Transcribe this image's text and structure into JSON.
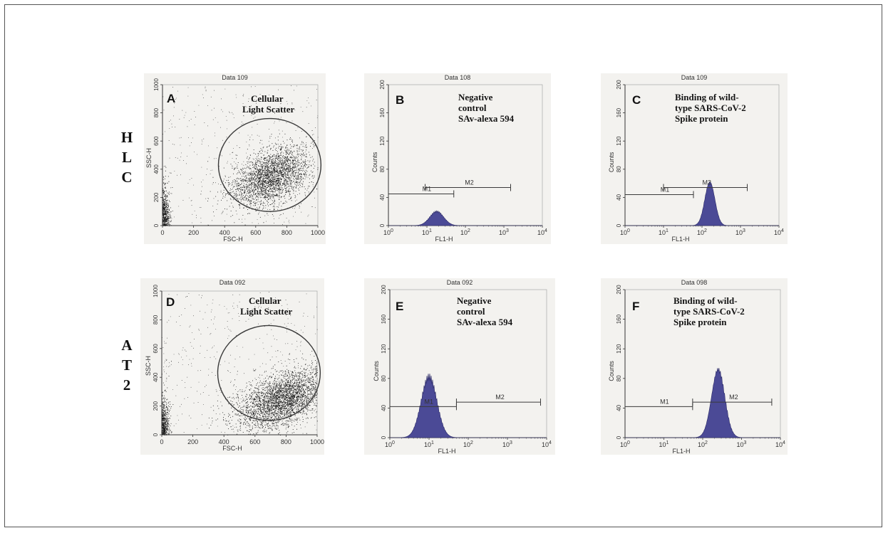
{
  "row_labels": [
    {
      "letters": [
        "H",
        "L",
        "C"
      ]
    },
    {
      "letters": [
        "A",
        "T",
        "2"
      ]
    }
  ],
  "colors": {
    "dot": "#1a1a1a",
    "histogram_fill": "#4b4a96",
    "line": "#333333",
    "panel_bg": "#f3f2ef"
  },
  "chart_data": [
    {
      "id": "scatter-hlc",
      "type": "scatter",
      "letter": "A",
      "data_title": "Data 109",
      "caption": [
        "Cellular",
        "Light Scatter"
      ],
      "xlabel": "FSC-H",
      "ylabel": "SSC-H",
      "xlim": [
        0,
        1000
      ],
      "ylim": [
        0,
        1000
      ],
      "xticks": [
        "0",
        "200",
        "400",
        "600",
        "800",
        "1000"
      ],
      "yticks": [
        "0",
        "200",
        "400",
        "600",
        "800",
        "1000"
      ],
      "cluster": {
        "center": [
          700,
          350
        ],
        "spread": [
          130,
          95
        ],
        "points": 2600
      },
      "gate": {
        "center": [
          690,
          430
        ],
        "radius_x": 330,
        "radius_y": 330
      }
    },
    {
      "id": "hist-hlc-neg",
      "type": "area",
      "letter": "B",
      "data_title": "Data 108",
      "caption": [
        "Negative",
        "control",
        "SAv-alexa 594"
      ],
      "xlabel": "FL1-H",
      "ylabel": "Counts",
      "xscale": "log",
      "xlim": [
        1,
        10000
      ],
      "ylim": [
        0,
        200
      ],
      "xticks": [
        "10^0",
        "10^1",
        "10^2",
        "10^3",
        "10^4"
      ],
      "yticks": [
        "0",
        "40",
        "80",
        "120",
        "160",
        "200"
      ],
      "peak": {
        "x": 18,
        "counts": 20,
        "log_width": 0.18
      },
      "markers": [
        {
          "name": "M1",
          "range": [
            1,
            50
          ],
          "y": 45
        },
        {
          "name": "M2",
          "range": [
            9,
            1500
          ],
          "y": 54
        }
      ]
    },
    {
      "id": "hist-hlc-spike",
      "type": "area",
      "letter": "C",
      "data_title": "Data 109",
      "caption": [
        "Binding  of wild-",
        "type SARS-CoV-2",
        "Spike protein"
      ],
      "xlabel": "FL1-H",
      "ylabel": "Counts",
      "xscale": "log",
      "xlim": [
        1,
        10000
      ],
      "ylim": [
        0,
        200
      ],
      "xticks": [
        "10^0",
        "10^1",
        "10^2",
        "10^3",
        "10^4"
      ],
      "yticks": [
        "0",
        "40",
        "80",
        "120",
        "160",
        "200"
      ],
      "peak": {
        "x": 160,
        "counts": 62,
        "log_width": 0.13
      },
      "markers": [
        {
          "name": "M1",
          "range": [
            1,
            60
          ],
          "y": 44
        },
        {
          "name": "M2",
          "range": [
            10,
            1500
          ],
          "y": 54
        }
      ]
    },
    {
      "id": "scatter-at2",
      "type": "scatter",
      "letter": "D",
      "data_title": "Data 092",
      "caption": [
        "Cellular",
        "Light Scatter"
      ],
      "xlabel": "FSC-H",
      "ylabel": "SSC-H",
      "xlim": [
        0,
        1000
      ],
      "ylim": [
        0,
        1000
      ],
      "xticks": [
        "0",
        "200",
        "400",
        "600",
        "800",
        "1000"
      ],
      "yticks": [
        "0",
        "200",
        "400",
        "600",
        "800",
        "1000"
      ],
      "cluster": {
        "center": [
          780,
          250
        ],
        "spread": [
          150,
          95
        ],
        "points": 3200
      },
      "gate": {
        "center": [
          690,
          430
        ],
        "radius_x": 330,
        "radius_y": 330
      }
    },
    {
      "id": "hist-at2-neg",
      "type": "area",
      "letter": "E",
      "data_title": "Data 092",
      "caption": [
        "Negative",
        "control",
        "SAv-alexa 594"
      ],
      "xlabel": "FL1-H",
      "ylabel": "Counts",
      "xscale": "log",
      "xlim": [
        1,
        10000
      ],
      "ylim": [
        0,
        200
      ],
      "xticks": [
        "10^0",
        "10^1",
        "10^2",
        "10^3",
        "10^4"
      ],
      "yticks": [
        "0",
        "40",
        "80",
        "120",
        "160",
        "200"
      ],
      "peak": {
        "x": 10,
        "counts": 82,
        "log_width": 0.2
      },
      "markers": [
        {
          "name": "M1",
          "range": [
            1,
            50
          ],
          "y": 42
        },
        {
          "name": "M2",
          "range": [
            50,
            7000
          ],
          "y": 48
        }
      ]
    },
    {
      "id": "hist-at2-spike",
      "type": "area",
      "letter": "F",
      "data_title": "Data 098",
      "caption": [
        "Binding  of wild-",
        "type SARS-CoV-2",
        "Spike protein"
      ],
      "xlabel": "FL1-H",
      "ylabel": "Counts",
      "xscale": "log",
      "xlim": [
        1,
        10000
      ],
      "ylim": [
        0,
        200
      ],
      "xticks": [
        "10^0",
        "10^1",
        "10^2",
        "10^3",
        "10^4"
      ],
      "yticks": [
        "0",
        "40",
        "80",
        "120",
        "160",
        "200"
      ],
      "peak": {
        "x": 250,
        "counts": 92,
        "log_width": 0.17
      },
      "markers": [
        {
          "name": "M1",
          "range": [
            1,
            55
          ],
          "y": 42
        },
        {
          "name": "M2",
          "range": [
            55,
            6000
          ],
          "y": 48
        }
      ]
    }
  ]
}
